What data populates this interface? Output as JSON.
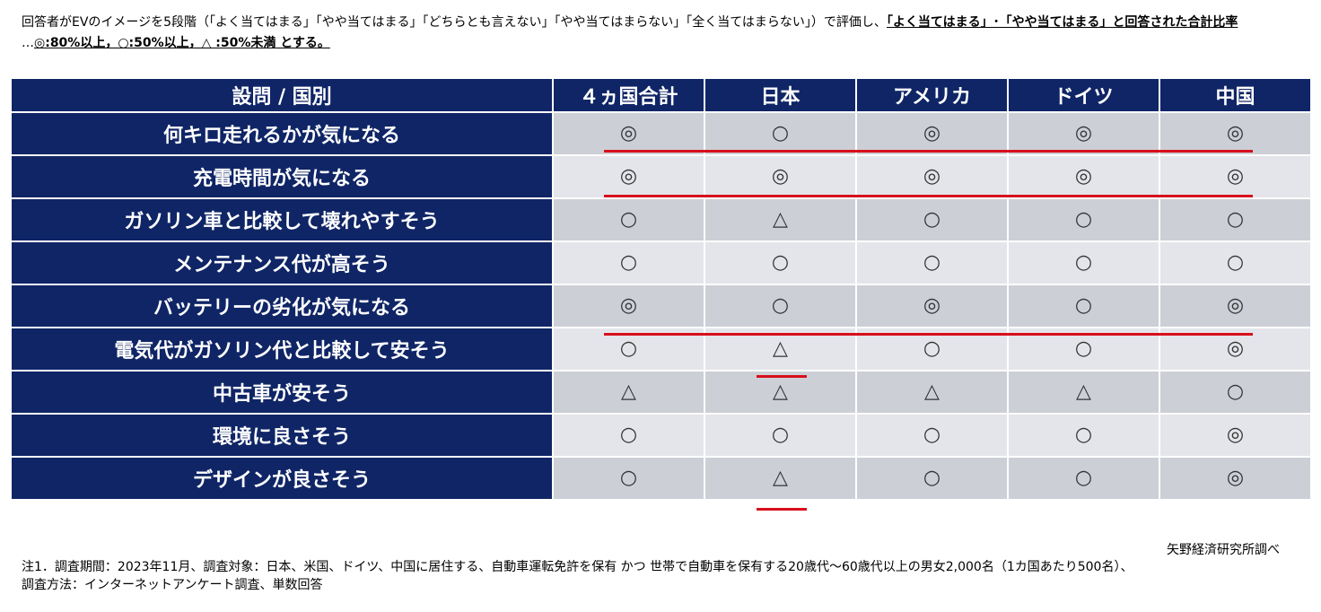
{
  "intro": {
    "line1_plain": "回答者がEVのイメージを5段階（「よく当てはまる」「やや当てはまる」「どちらとも言えない」「やや当てはまらない」「全く当てはまらない」）で評価し、",
    "line1_bold": "「よく当てはまる」･「やや当てはまる」と回答された合計比率",
    "line2_plain": "…",
    "line2_bold": "◎:80%以上，○:50%以上，△ :50%未満 とする。"
  },
  "table": {
    "headers": [
      "設問 / 国別",
      "４ヵ国合計",
      "日本",
      "アメリカ",
      "ドイツ",
      "中国"
    ],
    "rows": [
      {
        "label": "何キロ走れるかが気になる",
        "marks": [
          "◎",
          "○",
          "◎",
          "◎",
          "◎"
        ]
      },
      {
        "label": "充電時間が気になる",
        "marks": [
          "◎",
          "◎",
          "◎",
          "◎",
          "◎"
        ]
      },
      {
        "label": "ガソリン車と比較して壊れやすそう",
        "marks": [
          "○",
          "△",
          "○",
          "○",
          "○"
        ]
      },
      {
        "label": "メンテナンス代が高そう",
        "marks": [
          "○",
          "○",
          "○",
          "○",
          "○"
        ]
      },
      {
        "label": "バッテリーの劣化が気になる",
        "marks": [
          "◎",
          "○",
          "◎",
          "○",
          "◎"
        ]
      },
      {
        "label": "電気代がガソリン代と比較して安そう",
        "marks": [
          "○",
          "△",
          "○",
          "○",
          "◎"
        ]
      },
      {
        "label": "中古車が安そう",
        "marks": [
          "△",
          "△",
          "△",
          "△",
          "○"
        ]
      },
      {
        "label": "環境に良さそう",
        "marks": [
          "○",
          "○",
          "○",
          "○",
          "◎"
        ]
      },
      {
        "label": "デザインが良さそう",
        "marks": [
          "○",
          "△",
          "○",
          "○",
          "◎"
        ]
      }
    ]
  },
  "highlight_color": "#d80f1c",
  "header_color": "#0f2566",
  "source": "矢野経済研究所調べ",
  "notes": {
    "line1": "注1．調査期間：2023年11月、調査対象：日本、米国、ドイツ、中国に居住する、自動車運転免許を保有 かつ 世帯で自動車を保有する20歳代～60歳代以上の男女2,000名（1カ国あたり500名）、",
    "line2": "調査方法：インターネットアンケート調査、単数回答"
  }
}
